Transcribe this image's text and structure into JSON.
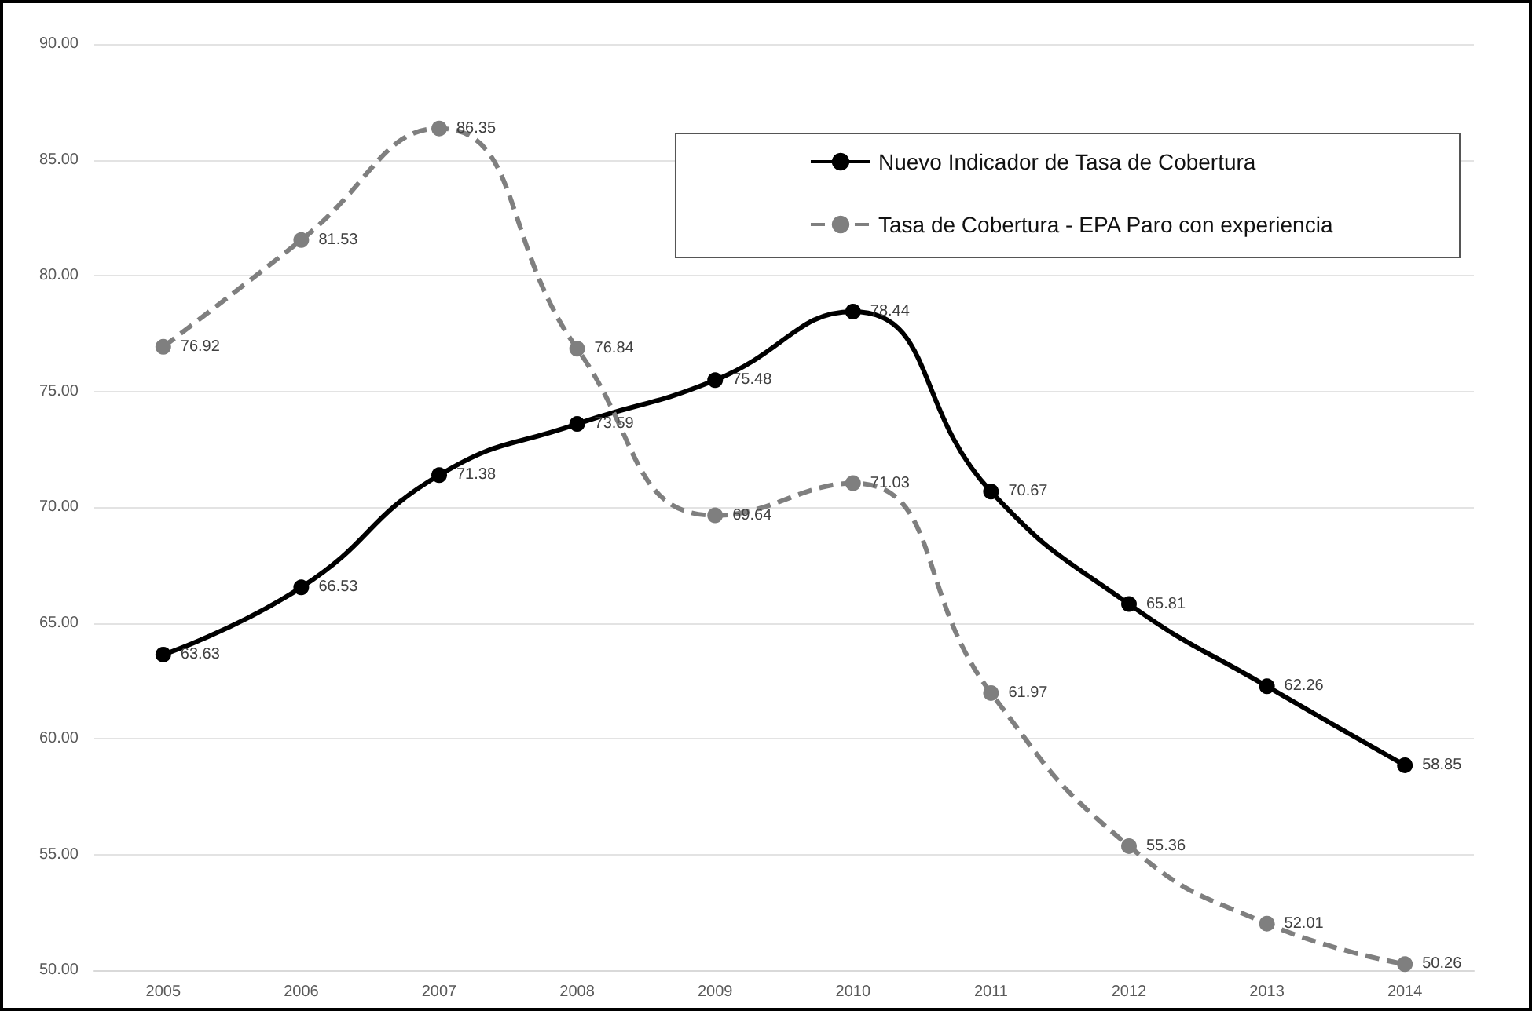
{
  "chart_data": {
    "type": "line",
    "categories": [
      "2005",
      "2006",
      "2007",
      "2008",
      "2009",
      "2010",
      "2011",
      "2012",
      "2013",
      "2014"
    ],
    "series": [
      {
        "name": "Nuevo Indicador de Tasa de Cobertura",
        "color": "#000000",
        "line_style": "solid",
        "values": [
          63.63,
          66.53,
          71.38,
          73.59,
          75.48,
          78.44,
          70.67,
          65.81,
          62.26,
          58.85
        ]
      },
      {
        "name": "Tasa de Cobertura - EPA Paro con experiencia",
        "color": "#7f7f7f",
        "line_style": "dashed",
        "values": [
          76.92,
          81.53,
          86.35,
          76.84,
          69.64,
          71.03,
          61.97,
          55.36,
          52.01,
          50.26
        ]
      }
    ],
    "ylim": [
      50,
      90
    ],
    "yticks": [
      {
        "value": 50,
        "label": "50.00"
      },
      {
        "value": 55,
        "label": "55.00"
      },
      {
        "value": 60,
        "label": "60.00"
      },
      {
        "value": 65,
        "label": "65.00"
      },
      {
        "value": 70,
        "label": "70.00"
      },
      {
        "value": 75,
        "label": "75.00"
      },
      {
        "value": 80,
        "label": "80.00"
      },
      {
        "value": 85,
        "label": "85.00"
      },
      {
        "value": 90,
        "label": "90.00"
      }
    ],
    "grid": "y",
    "legend": "top right",
    "marker": "circle",
    "data_labels": true
  }
}
